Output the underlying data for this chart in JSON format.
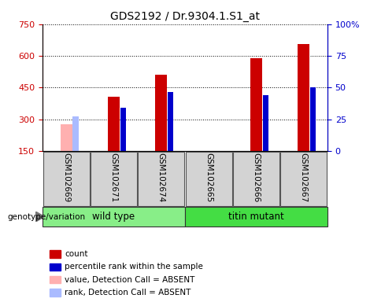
{
  "title": "GDS2192 / Dr.9304.1.S1_at",
  "samples": [
    "GSM102669",
    "GSM102671",
    "GSM102674",
    "GSM102665",
    "GSM102666",
    "GSM102667"
  ],
  "count_values": [
    null,
    405,
    510,
    null,
    590,
    655
  ],
  "count_absent": [
    275,
    null,
    null,
    null,
    null,
    null
  ],
  "rank_values": [
    null,
    355,
    430,
    null,
    415,
    450
  ],
  "rank_absent": [
    315,
    null,
    null,
    null,
    null,
    null
  ],
  "ylim_left": [
    150,
    750
  ],
  "ylim_right": [
    0,
    100
  ],
  "yticks_left": [
    150,
    300,
    450,
    600,
    750
  ],
  "yticks_right": [
    0,
    25,
    50,
    75,
    100
  ],
  "color_count": "#cc0000",
  "color_rank": "#0000cc",
  "color_absent_value": "#ffb0b0",
  "color_absent_rank": "#aabbff",
  "bar_width": 0.25,
  "rank_bar_width": 0.12,
  "wild_type_color": "#88ee88",
  "titin_color": "#44dd44",
  "legend_items": [
    {
      "label": "count",
      "color": "#cc0000"
    },
    {
      "label": "percentile rank within the sample",
      "color": "#0000cc"
    },
    {
      "label": "value, Detection Call = ABSENT",
      "color": "#ffb0b0"
    },
    {
      "label": "rank, Detection Call = ABSENT",
      "color": "#aabbff"
    }
  ]
}
